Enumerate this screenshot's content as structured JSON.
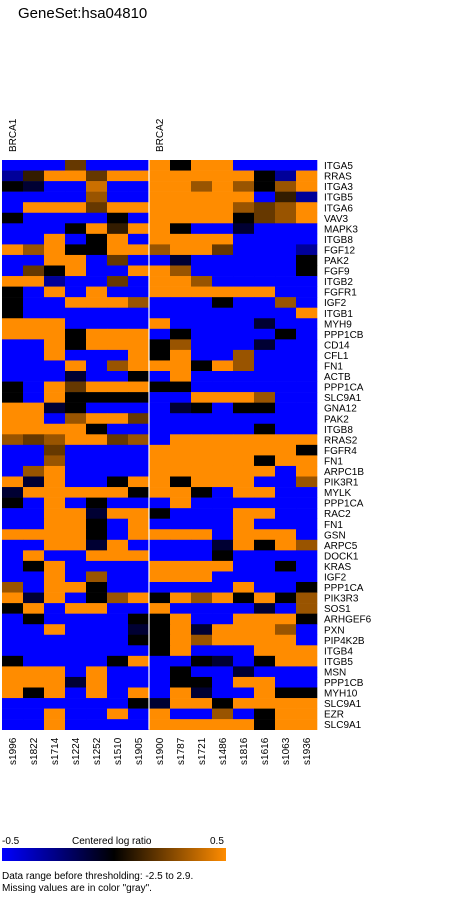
{
  "title": "GeneSet:hsa04810",
  "chart_data": {
    "type": "heatmap",
    "title": "GeneSet:hsa04810",
    "groups": [
      {
        "name": "BRCA1",
        "columns": [
          "s1996",
          "s1822",
          "s1714",
          "s1224",
          "s1252",
          "s1510",
          "s1905"
        ]
      },
      {
        "name": "BRCA2",
        "columns": [
          "s1900",
          "s1787",
          "s1721",
          "s1486",
          "s1816",
          "s1616",
          "s1063",
          "s1936"
        ]
      }
    ],
    "columns": [
      "s1996",
      "s1822",
      "s1714",
      "s1224",
      "s1252",
      "s1510",
      "s1905",
      "s1900",
      "s1787",
      "s1721",
      "s1486",
      "s1816",
      "s1616",
      "s1063",
      "s1936"
    ],
    "rows": [
      "ITGA5",
      "RRAS",
      "ITGA3",
      "ITGB5",
      "ITGA6",
      "VAV3",
      "MAPK3",
      "ITGB8",
      "FGF12",
      "PAK2",
      "FGF9",
      "ITGB2",
      "FGFR1",
      "IGF2",
      "ITGB1",
      "MYH9",
      "PPP1CB",
      "CD14",
      "CFL1",
      "FN1",
      "ACTB",
      "PPP1CA",
      "SLC9A1",
      "GNA12",
      "PAK2",
      "ITGB8",
      "RRAS2",
      "FGFR4",
      "FN1",
      "ARPC1B",
      "PIK3R1",
      "MYLK",
      "PPP1CA",
      "RAC2",
      "FN1",
      "GSN",
      "ARPC5",
      "DOCK1",
      "KRAS",
      "IGF2",
      "PPP1CA",
      "PIK3R3",
      "SOS1",
      "ARHGEF6",
      "PXN",
      "PIP4K2B",
      "ITGB4",
      "ITGB5",
      "MSN",
      "PPP1CB",
      "MYH10",
      "SLC9A1",
      "EZR",
      "SLC9A1"
    ],
    "values": [
      [
        -0.5,
        -0.5,
        -0.5,
        0.2,
        -0.5,
        -0.5,
        -0.5,
        0.5,
        0.0,
        0.5,
        0.5,
        -0.5,
        -0.5,
        -0.5,
        -0.5
      ],
      [
        -0.3,
        0.1,
        0.5,
        0.5,
        0.2,
        0.5,
        0.5,
        0.5,
        0.5,
        0.5,
        0.5,
        0.5,
        0.0,
        -0.3,
        0.5
      ],
      [
        0.0,
        -0.1,
        -0.5,
        -0.5,
        0.4,
        -0.5,
        -0.5,
        0.5,
        0.5,
        0.3,
        0.5,
        0.3,
        0.0,
        0.3,
        0.5
      ],
      [
        -0.5,
        -0.5,
        -0.5,
        -0.5,
        0.3,
        -0.5,
        -0.5,
        0.5,
        0.5,
        0.5,
        0.5,
        0.5,
        -0.5,
        0.1,
        -0.3
      ],
      [
        -0.5,
        0.5,
        0.5,
        0.5,
        0.2,
        0.5,
        0.5,
        0.5,
        0.5,
        0.5,
        0.5,
        0.3,
        0.2,
        0.3,
        0.5
      ],
      [
        0.0,
        -0.5,
        -0.5,
        -0.5,
        -0.5,
        0.0,
        -0.5,
        0.5,
        0.5,
        0.5,
        0.5,
        0.0,
        0.2,
        0.3,
        0.5
      ],
      [
        -0.5,
        -0.5,
        -0.5,
        0.0,
        0.5,
        0.1,
        0.5,
        0.5,
        0.0,
        -0.5,
        -0.5,
        -0.1,
        -0.5,
        -0.5,
        -0.5
      ],
      [
        -0.5,
        -0.5,
        0.5,
        -0.5,
        0.0,
        0.5,
        -0.5,
        0.5,
        0.5,
        0.5,
        0.5,
        -0.5,
        -0.5,
        -0.5,
        -0.5
      ],
      [
        0.5,
        0.3,
        0.5,
        0.0,
        0.0,
        0.5,
        0.5,
        0.3,
        0.5,
        0.5,
        0.2,
        -0.5,
        -0.5,
        -0.5,
        -0.3
      ],
      [
        -0.5,
        -0.5,
        0.5,
        0.5,
        -0.5,
        0.2,
        -0.5,
        -0.5,
        -0.1,
        -0.5,
        -0.5,
        -0.5,
        -0.5,
        -0.5,
        0.0
      ],
      [
        -0.5,
        0.2,
        0.0,
        0.5,
        -0.5,
        -0.5,
        0.5,
        0.5,
        0.3,
        -0.5,
        -0.5,
        -0.5,
        -0.5,
        -0.5,
        0.0
      ],
      [
        0.5,
        0.5,
        -0.3,
        -0.5,
        -0.5,
        0.2,
        -0.5,
        0.5,
        0.5,
        0.3,
        -0.5,
        -0.5,
        -0.5,
        -0.5,
        -0.5
      ],
      [
        0.0,
        -0.5,
        0.5,
        -0.5,
        0.5,
        -0.5,
        -0.5,
        0.5,
        0.5,
        0.5,
        0.5,
        0.5,
        0.5,
        -0.5,
        -0.5
      ],
      [
        0.0,
        -0.5,
        -0.5,
        0.5,
        0.5,
        0.5,
        0.3,
        -0.5,
        -0.5,
        -0.5,
        0.0,
        -0.5,
        -0.5,
        0.3,
        -0.5
      ],
      [
        0.0,
        -0.5,
        -0.5,
        -0.5,
        -0.5,
        -0.5,
        -0.5,
        -0.5,
        -0.5,
        -0.5,
        -0.5,
        -0.5,
        -0.5,
        -0.5,
        0.5
      ],
      [
        0.5,
        0.5,
        0.5,
        -0.5,
        -0.5,
        -0.5,
        -0.5,
        0.5,
        -0.5,
        -0.5,
        -0.5,
        -0.5,
        -0.1,
        -0.5,
        -0.5
      ],
      [
        0.5,
        0.5,
        0.5,
        0.0,
        0.5,
        0.5,
        0.5,
        -0.5,
        0.0,
        -0.5,
        -0.5,
        -0.5,
        -0.5,
        0.0,
        -0.5
      ],
      [
        -0.5,
        -0.5,
        0.5,
        0.0,
        0.5,
        0.5,
        0.5,
        0.0,
        0.3,
        -0.5,
        -0.5,
        -0.5,
        -0.1,
        -0.5,
        -0.5
      ],
      [
        -0.5,
        -0.5,
        0.5,
        -0.5,
        -0.5,
        -0.5,
        0.5,
        0.0,
        0.5,
        -0.5,
        -0.5,
        0.3,
        -0.5,
        -0.5,
        -0.5
      ],
      [
        -0.5,
        -0.5,
        -0.5,
        0.5,
        -0.5,
        0.3,
        0.5,
        0.5,
        0.5,
        0.0,
        0.5,
        0.3,
        -0.5,
        -0.5,
        -0.5
      ],
      [
        -0.5,
        -0.5,
        -0.5,
        -0.1,
        -0.5,
        -0.5,
        0.0,
        -0.5,
        0.5,
        -0.5,
        -0.5,
        -0.5,
        -0.5,
        -0.5,
        -0.5
      ],
      [
        0.0,
        -0.5,
        0.5,
        0.2,
        0.5,
        0.5,
        0.5,
        0.0,
        0.0,
        -0.5,
        -0.5,
        -0.5,
        -0.5,
        -0.5,
        -0.5
      ],
      [
        0.0,
        -0.5,
        0.5,
        0.0,
        0.0,
        0.0,
        0.0,
        -0.5,
        -0.5,
        0.5,
        0.5,
        0.5,
        0.3,
        -0.5,
        -0.5
      ],
      [
        0.5,
        0.5,
        -0.1,
        0.0,
        -0.5,
        -0.5,
        -0.5,
        -0.5,
        -0.1,
        0.0,
        -0.5,
        0.0,
        0.0,
        -0.5,
        -0.5
      ],
      [
        0.5,
        0.5,
        -0.5,
        0.3,
        0.5,
        0.5,
        0.2,
        -0.5,
        -0.5,
        -0.5,
        -0.5,
        -0.5,
        -0.5,
        -0.5,
        -0.5
      ],
      [
        0.5,
        0.5,
        0.5,
        0.5,
        0.0,
        -0.5,
        -0.5,
        -0.5,
        -0.5,
        -0.5,
        -0.5,
        -0.5,
        0.0,
        -0.5,
        -0.5
      ],
      [
        0.3,
        0.2,
        0.3,
        0.5,
        0.5,
        0.2,
        0.3,
        -0.5,
        0.5,
        0.5,
        0.5,
        0.5,
        0.5,
        0.5,
        0.5
      ],
      [
        -0.5,
        -0.5,
        0.2,
        -0.5,
        -0.5,
        -0.5,
        -0.5,
        0.5,
        0.5,
        0.5,
        0.5,
        0.5,
        0.5,
        0.5,
        0.0
      ],
      [
        -0.5,
        -0.5,
        0.3,
        -0.5,
        -0.5,
        -0.5,
        -0.5,
        0.5,
        0.5,
        0.5,
        0.5,
        0.5,
        0.0,
        0.5,
        0.5
      ],
      [
        -0.5,
        0.3,
        0.5,
        -0.5,
        -0.5,
        -0.5,
        -0.5,
        0.5,
        0.5,
        0.5,
        0.5,
        0.5,
        0.5,
        -0.5,
        0.5
      ],
      [
        0.5,
        -0.1,
        0.5,
        -0.5,
        -0.5,
        0.0,
        0.5,
        0.5,
        0.0,
        0.5,
        0.5,
        0.5,
        -0.5,
        -0.5,
        0.3
      ],
      [
        -0.1,
        0.5,
        0.5,
        0.5,
        0.5,
        0.5,
        0.0,
        0.5,
        0.5,
        0.0,
        -0.5,
        0.5,
        0.5,
        -0.5,
        -0.5
      ],
      [
        0.0,
        -0.5,
        0.5,
        -0.5,
        0.0,
        -0.5,
        -0.5,
        -0.5,
        0.5,
        -0.5,
        -0.5,
        -0.5,
        -0.5,
        -0.5,
        -0.5
      ],
      [
        -0.5,
        -0.5,
        0.5,
        0.5,
        -0.1,
        0.5,
        0.5,
        0.0,
        -0.5,
        -0.5,
        -0.5,
        0.5,
        0.5,
        -0.5,
        -0.5
      ],
      [
        -0.5,
        -0.5,
        0.5,
        0.5,
        0.0,
        -0.5,
        0.5,
        -0.5,
        -0.5,
        -0.5,
        -0.5,
        0.5,
        -0.5,
        -0.5,
        -0.5
      ],
      [
        0.5,
        0.5,
        0.5,
        0.5,
        0.0,
        -0.5,
        0.5,
        0.5,
        0.5,
        0.5,
        -0.5,
        0.5,
        0.5,
        0.5,
        -0.5
      ],
      [
        -0.5,
        -0.5,
        0.5,
        0.5,
        -0.1,
        0.5,
        -0.5,
        -0.5,
        -0.5,
        -0.5,
        -0.1,
        0.5,
        0.0,
        0.5,
        0.3
      ],
      [
        -0.5,
        0.5,
        -0.5,
        -0.5,
        0.5,
        0.5,
        0.5,
        -0.5,
        -0.5,
        -0.5,
        0.0,
        -0.5,
        -0.5,
        -0.5,
        -0.5
      ],
      [
        -0.5,
        0.0,
        0.5,
        -0.5,
        -0.5,
        -0.5,
        -0.5,
        0.5,
        0.5,
        0.5,
        0.5,
        -0.5,
        -0.5,
        0.0,
        -0.5
      ],
      [
        -0.5,
        -0.5,
        0.5,
        -0.5,
        0.3,
        -0.5,
        -0.5,
        0.5,
        0.5,
        0.5,
        -0.5,
        -0.5,
        -0.5,
        -0.5,
        -0.5
      ],
      [
        0.3,
        -0.5,
        0.5,
        0.5,
        0.0,
        -0.5,
        -0.5,
        -0.5,
        -0.5,
        -0.5,
        -0.5,
        0.5,
        -0.5,
        -0.5,
        0.0
      ],
      [
        0.5,
        -0.1,
        0.5,
        -0.5,
        0.0,
        0.3,
        0.5,
        0.0,
        0.5,
        0.3,
        0.5,
        0.0,
        0.5,
        0.0,
        0.3
      ],
      [
        0.0,
        0.5,
        -0.5,
        0.5,
        0.5,
        -0.5,
        -0.5,
        0.5,
        -0.5,
        -0.5,
        -0.5,
        -0.5,
        -0.1,
        -0.5,
        0.3
      ],
      [
        -0.5,
        0.0,
        -0.5,
        -0.5,
        -0.5,
        -0.5,
        0.0,
        0.0,
        0.5,
        -0.5,
        -0.5,
        0.5,
        0.5,
        0.5,
        0.0
      ],
      [
        -0.5,
        -0.5,
        0.5,
        -0.5,
        -0.5,
        -0.5,
        -0.1,
        0.0,
        0.5,
        -0.1,
        0.5,
        0.5,
        0.5,
        0.3,
        -0.5
      ],
      [
        -0.5,
        -0.5,
        -0.5,
        -0.5,
        -0.5,
        -0.5,
        0.0,
        0.0,
        0.5,
        0.3,
        0.5,
        0.5,
        0.5,
        0.5,
        -0.5
      ],
      [
        -0.5,
        -0.5,
        -0.5,
        -0.5,
        -0.5,
        -0.5,
        -0.5,
        0.0,
        0.5,
        -0.5,
        -0.5,
        -0.5,
        0.5,
        0.5,
        0.5
      ],
      [
        0.0,
        -0.5,
        -0.5,
        -0.5,
        -0.5,
        0.0,
        0.5,
        -0.5,
        -0.5,
        0.0,
        -0.1,
        -0.5,
        0.0,
        0.5,
        0.5
      ],
      [
        0.5,
        0.5,
        0.5,
        -0.5,
        0.5,
        -0.5,
        -0.5,
        -0.5,
        0.0,
        -0.5,
        -0.5,
        -0.1,
        -0.5,
        -0.5,
        -0.5
      ],
      [
        0.5,
        0.5,
        0.5,
        -0.1,
        0.5,
        -0.5,
        -0.5,
        -0.5,
        0.0,
        0.0,
        -0.5,
        0.5,
        0.5,
        -0.5,
        -0.5
      ],
      [
        0.5,
        0.0,
        0.5,
        -0.5,
        0.5,
        -0.5,
        0.5,
        -0.5,
        0.5,
        -0.1,
        -0.5,
        -0.5,
        0.5,
        0.0,
        0.0
      ],
      [
        -0.5,
        -0.5,
        -0.5,
        -0.5,
        -0.5,
        -0.5,
        0.0,
        -0.1,
        0.5,
        0.5,
        0.0,
        0.5,
        0.5,
        0.5,
        0.5
      ],
      [
        -0.5,
        -0.5,
        0.5,
        -0.5,
        -0.5,
        0.5,
        -0.5,
        0.5,
        -0.5,
        -0.5,
        0.3,
        -0.5,
        0.0,
        0.5,
        0.5
      ],
      [
        -0.5,
        -0.5,
        0.5,
        -0.5,
        -0.5,
        -0.5,
        -0.5,
        0.5,
        0.5,
        0.5,
        0.5,
        0.5,
        0.0,
        0.5,
        0.5
      ]
    ],
    "color_scale": {
      "low": "#0000ff",
      "mid": "#000000",
      "high": "#ff8c00",
      "missing": "gray"
    },
    "colorbar": {
      "min_label": "-0.5",
      "max_label": "0.5",
      "title": "Centered log ratio"
    },
    "notes": [
      "Data range before thresholding: -2.5 to 2.9.",
      "Missing values are in color \"gray\"."
    ]
  }
}
